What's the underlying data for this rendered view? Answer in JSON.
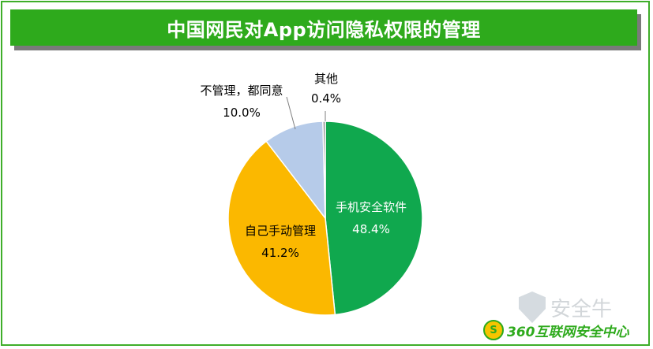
{
  "title": "中国网民对App访问隐私权限的管理",
  "chart_data": {
    "type": "pie",
    "title": "中国网民对App访问隐私权限的管理",
    "slices": [
      {
        "label": "手机安全软件",
        "value": 48.4,
        "display": "48.4%",
        "color": "#10a84e"
      },
      {
        "label": "自己手动管理",
        "value": 41.2,
        "display": "41.2%",
        "color": "#fbb800"
      },
      {
        "label": "不管理，都同意",
        "value": 10.0,
        "display": "10.0%",
        "color": "#b6cbe9"
      },
      {
        "label": "其他",
        "value": 0.4,
        "display": "0.4%",
        "color": "#8c8c8c"
      }
    ]
  },
  "logo": {
    "badge": "S",
    "text": "360互联网安全中心"
  },
  "watermark": {
    "text": "安全牛",
    "icon": "shield-icon"
  }
}
